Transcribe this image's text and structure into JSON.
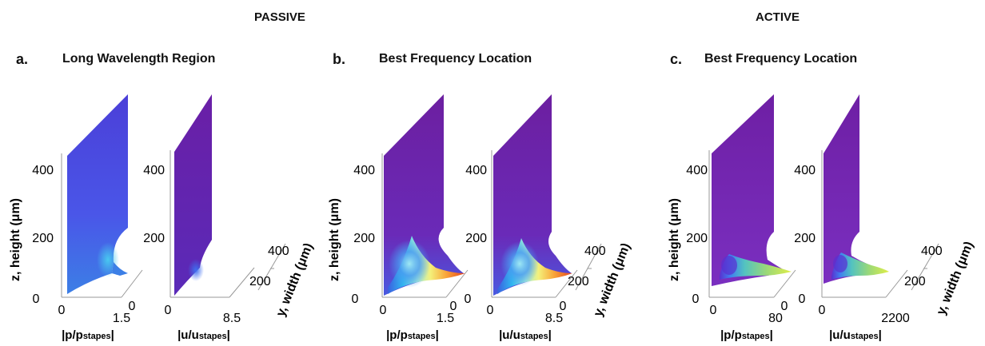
{
  "sections": {
    "passive": "PASSIVE",
    "active": "ACTIVE"
  },
  "panels": [
    {
      "letter": "a.",
      "title": "Long Wavelength Region",
      "ylabel": "z, height (μm)",
      "plots": [
        {
          "xlabel_main": "|p/p",
          "xlabel_sub": "stapes",
          "xlabel_end": "|",
          "x_ticks": [
            "0",
            "1.5"
          ],
          "depth_ticks": [
            "0"
          ],
          "z_ticks": [
            "0",
            "200",
            "400"
          ],
          "colormap": "blue"
        },
        {
          "xlabel_main": "|u/u",
          "xlabel_sub": "stapes",
          "xlabel_end": "|",
          "x_ticks": [
            "0",
            "8.5"
          ],
          "depth_ticks": [],
          "z_ticks": [
            "200",
            "400"
          ],
          "colormap": "purple"
        }
      ],
      "width_label": "y, width (μm)",
      "width_ticks": [
        "200",
        "400"
      ]
    },
    {
      "letter": "b.",
      "title": "Best Frequency Location",
      "ylabel": "z, height (μm)",
      "plots": [
        {
          "xlabel_main": "|p/p",
          "xlabel_sub": "stapes",
          "xlabel_end": "|",
          "x_ticks": [
            "0",
            "1.5"
          ],
          "depth_ticks": [
            "0"
          ],
          "z_ticks": [
            "0",
            "200",
            "400"
          ],
          "colormap": "rainbow"
        },
        {
          "xlabel_main": "|u/u",
          "xlabel_sub": "stapes",
          "xlabel_end": "|",
          "x_ticks": [
            "0",
            "8.5"
          ],
          "depth_ticks": [
            "0"
          ],
          "z_ticks": [
            "0",
            "200",
            "400"
          ],
          "colormap": "rainbow"
        }
      ],
      "width_label": "y, width (μm)",
      "width_ticks": [
        "200",
        "400"
      ]
    },
    {
      "letter": "c.",
      "title": "Best Frequency Location",
      "ylabel": "z, height (μm)",
      "plots": [
        {
          "xlabel_main": "|p/p",
          "xlabel_sub": "stapes",
          "xlabel_end": "|",
          "x_ticks": [
            "0",
            "80"
          ],
          "depth_ticks": [
            "0"
          ],
          "z_ticks": [
            "0",
            "200",
            "400"
          ],
          "colormap": "active"
        },
        {
          "xlabel_main": "|u/u",
          "xlabel_sub": "stapes",
          "xlabel_end": "|",
          "x_ticks": [
            "0",
            "2200"
          ],
          "depth_ticks": [],
          "z_ticks": [
            "0",
            "200",
            "400"
          ],
          "colormap": "active"
        }
      ],
      "width_label": "y, width (μm)",
      "width_ticks": [
        "200",
        "400"
      ]
    }
  ],
  "colors": {
    "blue_base": "#4a4ae0",
    "purple_base": "#6a1fa8",
    "rainbow_hot": "#e64a19",
    "active_tip": "#d7ec4a"
  }
}
